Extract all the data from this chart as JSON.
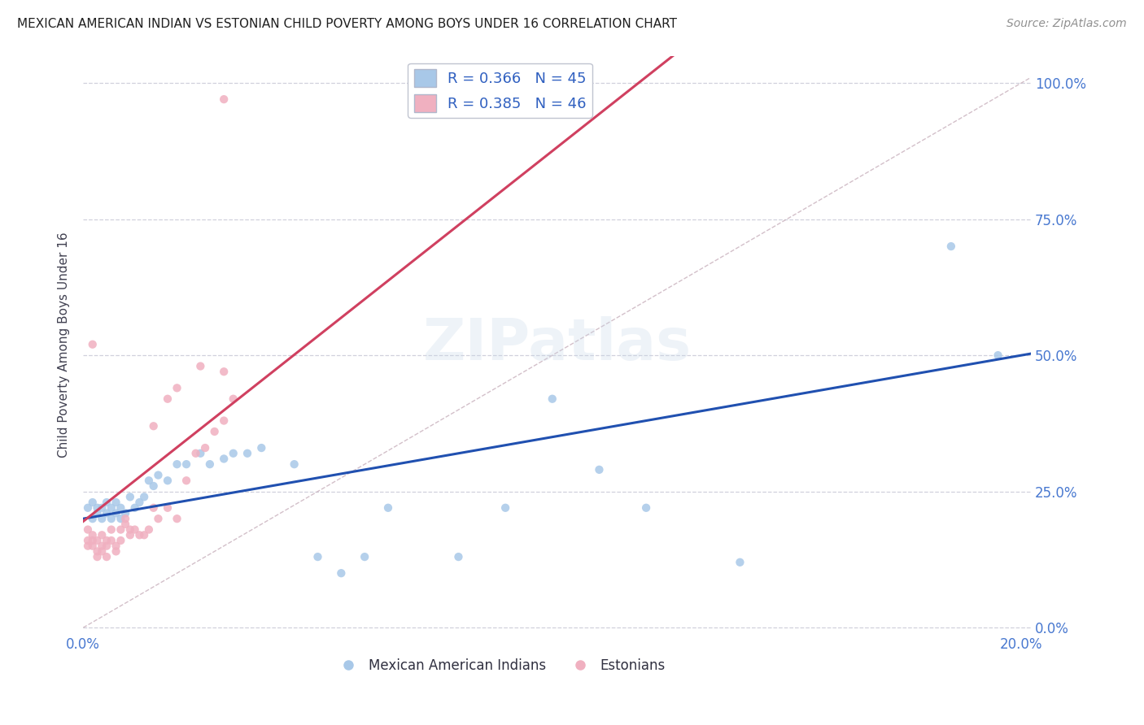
{
  "title": "MEXICAN AMERICAN INDIAN VS ESTONIAN CHILD POVERTY AMONG BOYS UNDER 16 CORRELATION CHART",
  "source": "Source: ZipAtlas.com",
  "ylabel": "Child Poverty Among Boys Under 16",
  "blue_R": 0.366,
  "blue_N": 45,
  "pink_R": 0.385,
  "pink_N": 46,
  "blue_color": "#a8c8e8",
  "pink_color": "#f0b0c0",
  "line_blue": "#2050b0",
  "line_pink": "#d04060",
  "diag_color": "#c8b0b8",
  "title_color": "#202020",
  "axis_label_color": "#4878d0",
  "legend_text_color": "#3060c0",
  "watermark": "ZIPatlas",
  "background_color": "#ffffff",
  "grid_color": "#d0d0dc",
  "blue_intercept": 0.2,
  "blue_slope": 1.5,
  "pink_intercept": 0.195,
  "pink_slope": 8.0,
  "blue_x": [
    0.001,
    0.002,
    0.002,
    0.003,
    0.003,
    0.004,
    0.004,
    0.005,
    0.005,
    0.006,
    0.006,
    0.007,
    0.007,
    0.008,
    0.008,
    0.009,
    0.01,
    0.011,
    0.012,
    0.013,
    0.014,
    0.015,
    0.016,
    0.018,
    0.02,
    0.022,
    0.025,
    0.027,
    0.03,
    0.032,
    0.035,
    0.038,
    0.045,
    0.05,
    0.06,
    0.08,
    0.09,
    0.1,
    0.12,
    0.14,
    0.055,
    0.065,
    0.11,
    0.185,
    0.195
  ],
  "blue_y": [
    0.22,
    0.2,
    0.23,
    0.21,
    0.22,
    0.2,
    0.22,
    0.21,
    0.23,
    0.2,
    0.22,
    0.21,
    0.23,
    0.2,
    0.22,
    0.21,
    0.24,
    0.22,
    0.23,
    0.24,
    0.27,
    0.26,
    0.28,
    0.27,
    0.3,
    0.3,
    0.32,
    0.3,
    0.31,
    0.32,
    0.32,
    0.33,
    0.3,
    0.13,
    0.13,
    0.13,
    0.22,
    0.42,
    0.22,
    0.12,
    0.1,
    0.22,
    0.29,
    0.7,
    0.5
  ],
  "pink_x": [
    0.001,
    0.001,
    0.001,
    0.002,
    0.002,
    0.002,
    0.003,
    0.003,
    0.003,
    0.004,
    0.004,
    0.004,
    0.005,
    0.005,
    0.005,
    0.006,
    0.006,
    0.007,
    0.007,
    0.008,
    0.008,
    0.009,
    0.009,
    0.01,
    0.01,
    0.011,
    0.012,
    0.013,
    0.014,
    0.015,
    0.016,
    0.018,
    0.02,
    0.022,
    0.024,
    0.026,
    0.028,
    0.03,
    0.032,
    0.002,
    0.015,
    0.018,
    0.02,
    0.025,
    0.03,
    0.03
  ],
  "pink_y": [
    0.18,
    0.16,
    0.15,
    0.15,
    0.17,
    0.16,
    0.14,
    0.16,
    0.13,
    0.15,
    0.14,
    0.17,
    0.13,
    0.15,
    0.16,
    0.16,
    0.18,
    0.15,
    0.14,
    0.16,
    0.18,
    0.2,
    0.19,
    0.18,
    0.17,
    0.18,
    0.17,
    0.17,
    0.18,
    0.22,
    0.2,
    0.22,
    0.2,
    0.27,
    0.32,
    0.33,
    0.36,
    0.38,
    0.42,
    0.52,
    0.37,
    0.42,
    0.44,
    0.48,
    0.47,
    0.97
  ]
}
